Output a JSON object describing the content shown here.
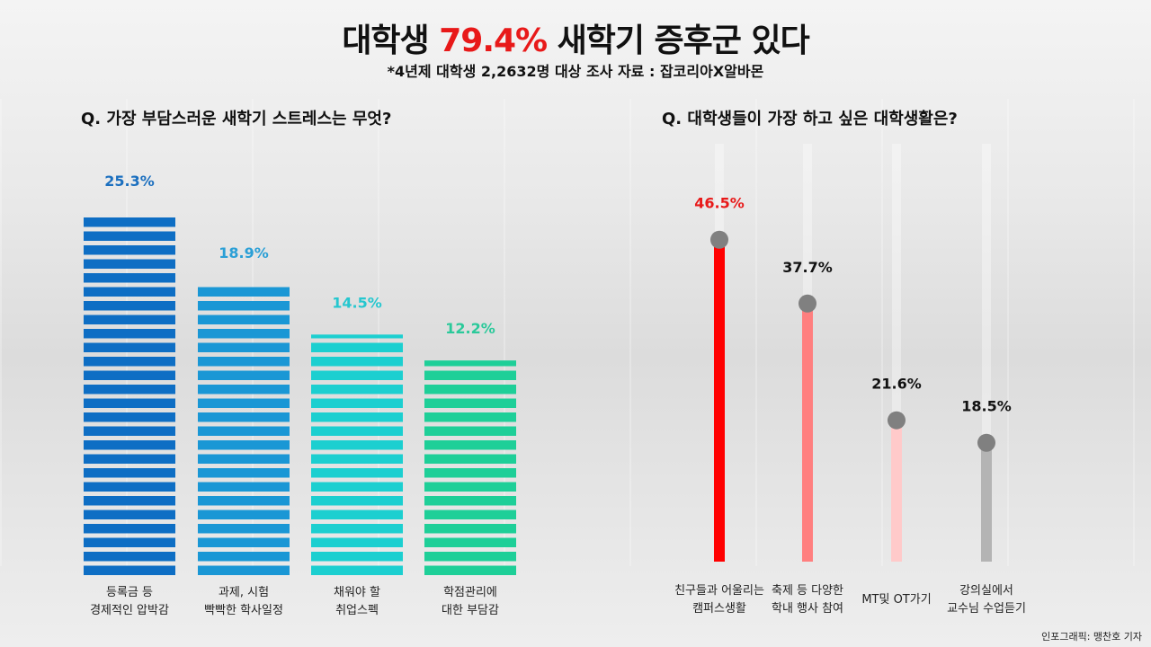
{
  "title": {
    "pre": "대학생 ",
    "highlight": "79.4%",
    "post": " 새학기 증후군 있다",
    "highlight_color": "#e81919"
  },
  "subtitle": "*4년제 대학생 2,2632명  대상 조사 자료 : 잡코리아X알바몬",
  "credit": "인포그래픽: 맹찬호 기자",
  "chart_data": [
    {
      "type": "bar",
      "title": "Q. 가장 부담스러운 새학기 스트레스는 무엇?",
      "categories": [
        [
          "등록금 등",
          "경제적인 압박감"
        ],
        [
          "과제, 시험",
          "빡빡한 학사일정"
        ],
        [
          "채워야 할",
          "취업스펙"
        ],
        [
          "학점관리에",
          "대한 부담감"
        ]
      ],
      "values": [
        25.3,
        18.9,
        14.5,
        12.2
      ],
      "labels": [
        "25.3%",
        "18.9%",
        "14.5%",
        "12.2%"
      ],
      "colors": [
        "#0e6ec4",
        "#1a97d5",
        "#1ccfd0",
        "#1ecf98"
      ],
      "label_colors": [
        "#1b6fbf",
        "#2a9fd6",
        "#25c7cf",
        "#2bc99a"
      ]
    },
    {
      "type": "lollipop",
      "title": "Q. 대학생들이 가장 하고 싶은 대학생활은?",
      "categories": [
        [
          "친구들과 어울리는",
          "캠퍼스생활"
        ],
        [
          "축제 등 다양한",
          "학내 행사 참여"
        ],
        [
          "MT및 OT가기"
        ],
        [
          "강의실에서",
          "교수님 수업듣기"
        ]
      ],
      "values": [
        46.5,
        37.7,
        21.6,
        18.5
      ],
      "labels": [
        "46.5%",
        "37.7%",
        "21.6%",
        "18.5%"
      ],
      "colors": [
        "#ff0000",
        "#ff7f7f",
        "#ffcaca",
        "#b4b4b4"
      ],
      "label_colors": [
        "#e81919",
        "#111111",
        "#111111",
        "#111111"
      ]
    }
  ]
}
